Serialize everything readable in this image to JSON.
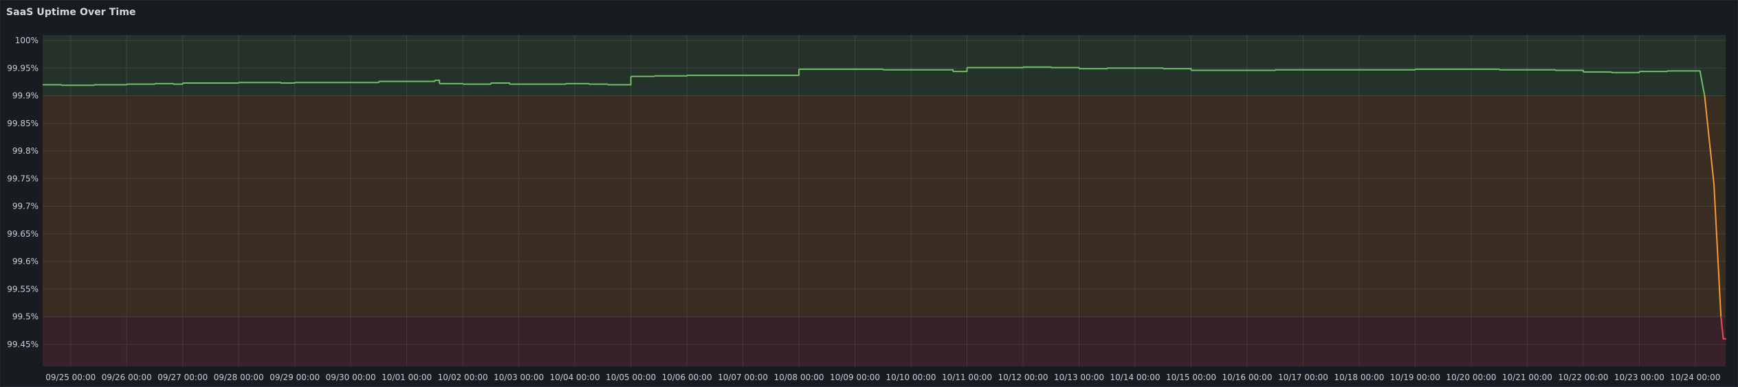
{
  "panel": {
    "title": "SaaS Uptime Over Time"
  },
  "chart_data": {
    "type": "line",
    "title": "SaaS Uptime Over Time",
    "xlabel": "",
    "ylabel": "",
    "unit": "%",
    "grid": true,
    "legend": "none",
    "x_range": [
      "2025-09-24 12:00",
      "2025-10-24 13:00"
    ],
    "ylim": [
      99.41,
      100.01
    ],
    "x_tick_labels": [
      "09/25 00:00",
      "09/26 00:00",
      "09/27 00:00",
      "09/28 00:00",
      "09/29 00:00",
      "09/30 00:00",
      "10/01 00:00",
      "10/02 00:00",
      "10/03 00:00",
      "10/04 00:00",
      "10/05 00:00",
      "10/06 00:00",
      "10/07 00:00",
      "10/08 00:00",
      "10/09 00:00",
      "10/10 00:00",
      "10/11 00:00",
      "10/12 00:00",
      "10/13 00:00",
      "10/14 00:00",
      "10/15 00:00",
      "10/16 00:00",
      "10/17 00:00",
      "10/18 00:00",
      "10/19 00:00",
      "10/20 00:00",
      "10/21 00:00",
      "10/22 00:00",
      "10/23 00:00",
      "10/24 00:00"
    ],
    "y_ticks": [
      {
        "value": 99.45,
        "label": "99.45%"
      },
      {
        "value": 99.5,
        "label": "99.5%"
      },
      {
        "value": 99.55,
        "label": "99.55%"
      },
      {
        "value": 99.6,
        "label": "99.6%"
      },
      {
        "value": 99.65,
        "label": "99.65%"
      },
      {
        "value": 99.7,
        "label": "99.7%"
      },
      {
        "value": 99.75,
        "label": "99.75%"
      },
      {
        "value": 99.8,
        "label": "99.8%"
      },
      {
        "value": 99.85,
        "label": "99.85%"
      },
      {
        "value": 99.9,
        "label": "99.9%"
      },
      {
        "value": 99.95,
        "label": "99.95%"
      },
      {
        "value": 100,
        "label": "100%"
      }
    ],
    "thresholds": [
      {
        "from": 99.9,
        "to": 100.01,
        "color": "#73bf69"
      },
      {
        "from": 99.5,
        "to": 99.9,
        "color": "#ff9830"
      },
      {
        "from": 99.41,
        "to": 99.5,
        "color": "#f2495c"
      }
    ],
    "series": [
      {
        "points": [
          [
            "2025-09-24 12:00",
            99.92
          ],
          [
            "2025-09-24 20:00",
            99.919
          ],
          [
            "2025-09-25 10:00",
            99.92
          ],
          [
            "2025-09-26 00:00",
            99.921
          ],
          [
            "2025-09-26 12:00",
            99.922
          ],
          [
            "2025-09-26 20:00",
            99.921
          ],
          [
            "2025-09-27 00:00",
            99.923
          ],
          [
            "2025-09-28 00:00",
            99.924
          ],
          [
            "2025-09-28 18:00",
            99.923
          ],
          [
            "2025-09-29 00:00",
            99.924
          ],
          [
            "2025-09-30 00:00",
            99.924
          ],
          [
            "2025-09-30 12:00",
            99.926
          ],
          [
            "2025-10-01 12:00",
            99.928
          ],
          [
            "2025-10-01 14:00",
            99.922
          ],
          [
            "2025-10-02 00:00",
            99.921
          ],
          [
            "2025-10-02 12:00",
            99.923
          ],
          [
            "2025-10-02 20:00",
            99.921
          ],
          [
            "2025-10-03 06:00",
            99.921
          ],
          [
            "2025-10-03 20:00",
            99.922
          ],
          [
            "2025-10-04 06:00",
            99.921
          ],
          [
            "2025-10-04 14:00",
            99.92
          ],
          [
            "2025-10-05 00:00",
            99.935
          ],
          [
            "2025-10-05 10:00",
            99.936
          ],
          [
            "2025-10-06 00:00",
            99.937
          ],
          [
            "2025-10-07 00:00",
            99.937
          ],
          [
            "2025-10-08 00:00",
            99.948
          ],
          [
            "2025-10-09 00:00",
            99.948
          ],
          [
            "2025-10-09 12:00",
            99.947
          ],
          [
            "2025-10-10 00:00",
            99.947
          ],
          [
            "2025-10-10 18:00",
            99.944
          ],
          [
            "2025-10-11 00:00",
            99.951
          ],
          [
            "2025-10-12 00:00",
            99.952
          ],
          [
            "2025-10-12 12:00",
            99.951
          ],
          [
            "2025-10-13 00:00",
            99.949
          ],
          [
            "2025-10-13 12:00",
            99.95
          ],
          [
            "2025-10-14 00:00",
            99.95
          ],
          [
            "2025-10-14 12:00",
            99.949
          ],
          [
            "2025-10-15 00:00",
            99.946
          ],
          [
            "2025-10-16 00:00",
            99.946
          ],
          [
            "2025-10-16 12:00",
            99.947
          ],
          [
            "2025-10-17 00:00",
            99.947
          ],
          [
            "2025-10-18 00:00",
            99.947
          ],
          [
            "2025-10-19 00:00",
            99.948
          ],
          [
            "2025-10-20 00:00",
            99.948
          ],
          [
            "2025-10-20 12:00",
            99.947
          ],
          [
            "2025-10-21 12:00",
            99.946
          ],
          [
            "2025-10-22 00:00",
            99.943
          ],
          [
            "2025-10-22 12:00",
            99.942
          ],
          [
            "2025-10-23 00:00",
            99.944
          ],
          [
            "2025-10-23 12:00",
            99.945
          ],
          [
            "2025-10-24 00:00",
            99.945
          ],
          [
            "2025-10-24 02:00",
            99.945
          ],
          [
            "2025-10-24 04:00",
            99.9
          ],
          [
            "2025-10-24 08:00",
            99.74
          ],
          [
            "2025-10-24 11:00",
            99.5
          ],
          [
            "2025-10-24 12:00",
            99.46
          ],
          [
            "2025-10-24 13:00",
            99.46
          ]
        ]
      }
    ]
  }
}
